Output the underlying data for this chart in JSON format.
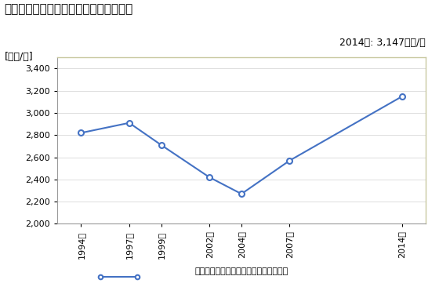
{
  "title": "商業の従業者一人当たり年間商品販売額",
  "ylabel": "[万円/人]",
  "annotation": "2014年: 3,147万円/人",
  "years": [
    1994,
    1997,
    1999,
    2002,
    2004,
    2007,
    2014
  ],
  "year_labels": [
    "1994年",
    "1997年",
    "1999年",
    "2002年",
    "2004年",
    "2007年",
    "2014年"
  ],
  "values": [
    2820,
    2910,
    2710,
    2420,
    2270,
    2570,
    3147
  ],
  "ylim": [
    2000,
    3500
  ],
  "yticks": [
    2000,
    2200,
    2400,
    2600,
    2800,
    3000,
    3200,
    3400
  ],
  "line_color": "#4472C4",
  "marker_color": "#4472C4",
  "legend_label": "商業の従業者一人当たり年間商品販売額",
  "bg_color": "#FFFFFF",
  "plot_bg_color": "#FFFFFF",
  "plot_border_color": "#C8C8A0",
  "spine_color": "#999999",
  "grid_color": "#DDDDDD",
  "title_fontsize": 11,
  "label_fontsize": 9,
  "tick_fontsize": 8,
  "annotation_fontsize": 9,
  "xlim_left": 1992.5,
  "xlim_right": 2015.5
}
